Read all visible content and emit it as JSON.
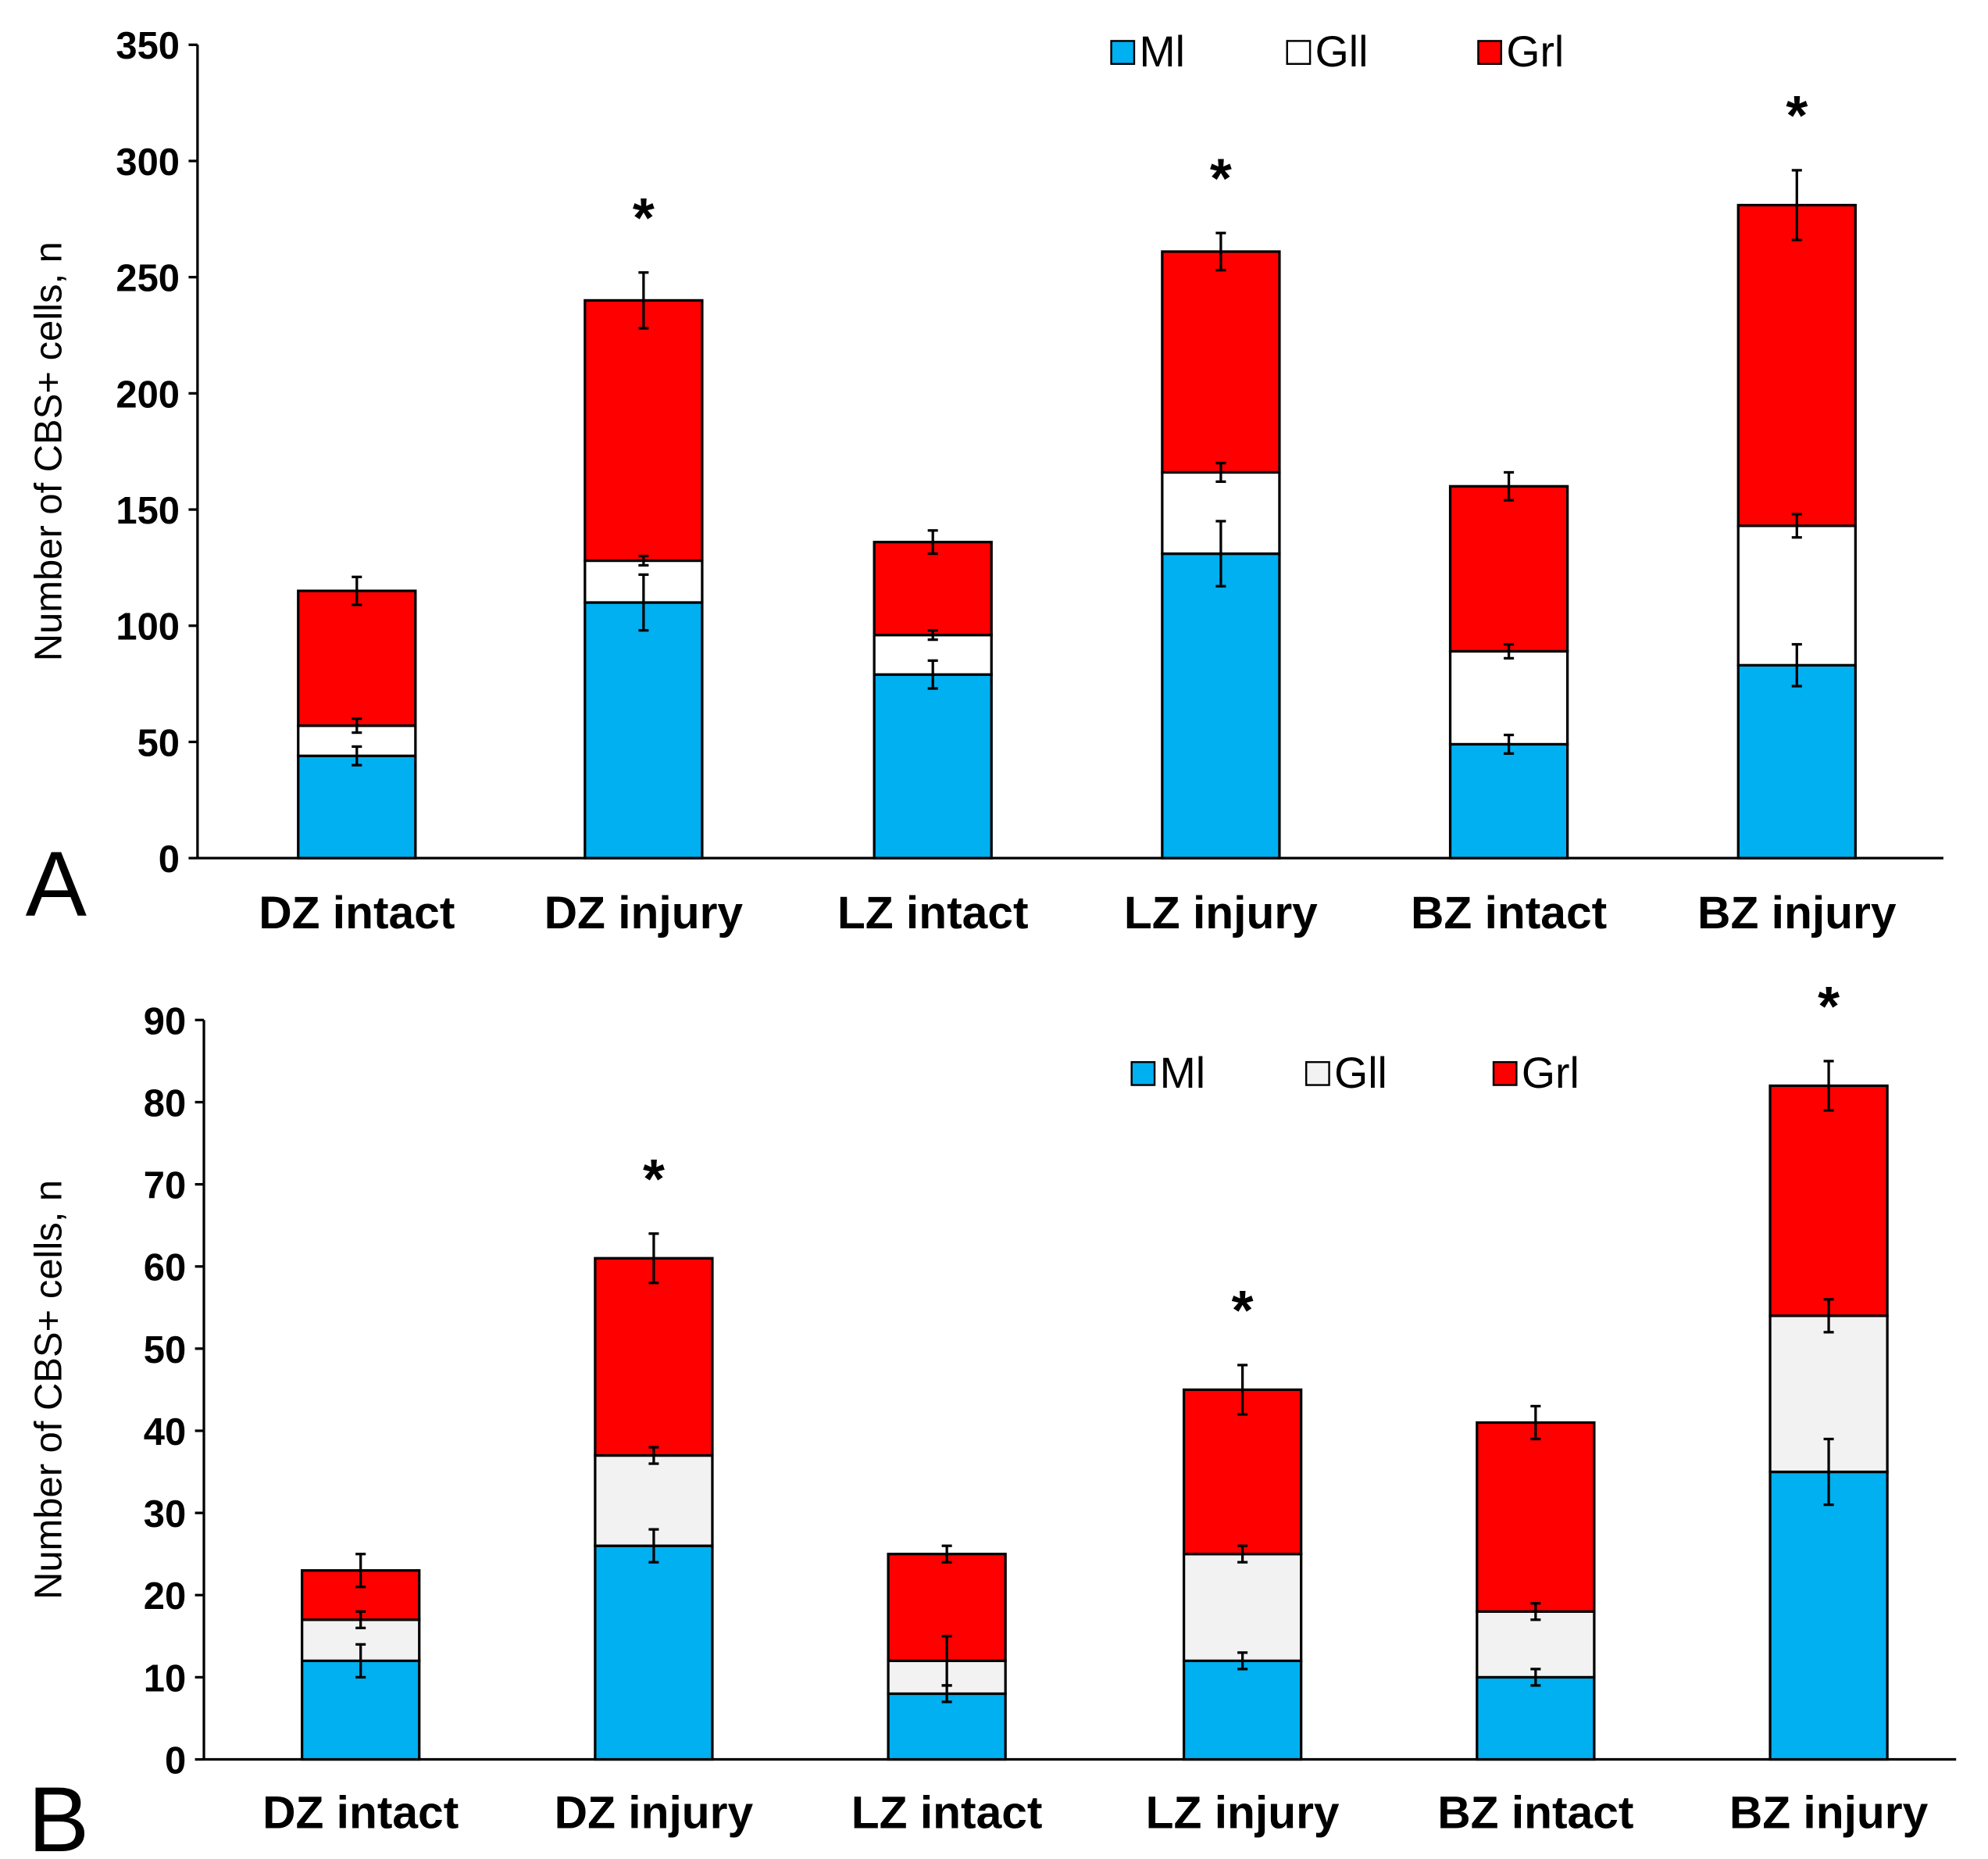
{
  "colors": {
    "Ml": "#00b0f0",
    "Gll_A": "#ffffff",
    "Gll_B": "#f2f2f2",
    "Grl": "#ff0000"
  },
  "chart_data": [
    {
      "type": "bar",
      "stacked": true,
      "panel_label": "A",
      "ylabel": "Number of CBS+ cells, n",
      "ylim": [
        0,
        350
      ],
      "yticks": [
        0,
        50,
        100,
        150,
        200,
        250,
        300,
        350
      ],
      "categories": [
        "DZ intact",
        "DZ injury",
        "LZ intact",
        "LZ injury",
        "BZ intact",
        "BZ injury"
      ],
      "legend": [
        "Ml",
        "Gll",
        "Grl"
      ],
      "legend_position": "top-right",
      "series": [
        {
          "name": "Ml",
          "values": [
            44,
            110,
            79,
            131,
            49,
            83
          ],
          "errors": [
            4,
            12,
            6,
            14,
            4,
            9
          ]
        },
        {
          "name": "Gll",
          "values": [
            13,
            18,
            17,
            35,
            40,
            60
          ],
          "errors": [
            3,
            2,
            2,
            4,
            3,
            5
          ]
        },
        {
          "name": "Grl",
          "values": [
            58,
            112,
            40,
            95,
            71,
            138
          ],
          "errors": [
            6,
            12,
            5,
            8,
            6,
            15
          ]
        }
      ],
      "significance": [
        "",
        "*",
        "",
        "*",
        "",
        "*"
      ]
    },
    {
      "type": "bar",
      "stacked": true,
      "panel_label": "B",
      "ylabel": "Number of CBS+ cells, n",
      "ylim": [
        0,
        90
      ],
      "yticks": [
        0,
        10,
        20,
        30,
        40,
        50,
        60,
        70,
        80,
        90
      ],
      "categories": [
        "DZ intact",
        "DZ injury",
        "LZ intact",
        "LZ injury",
        "BZ intact",
        "BZ injury"
      ],
      "legend": [
        "Ml",
        "Gll",
        "Grl"
      ],
      "legend_position": "top-right",
      "series": [
        {
          "name": "Ml",
          "values": [
            12,
            26,
            8,
            12,
            10,
            35
          ],
          "errors": [
            2,
            2,
            1,
            1,
            1,
            4
          ]
        },
        {
          "name": "Gll",
          "values": [
            5,
            11,
            4,
            13,
            8,
            19
          ],
          "errors": [
            1,
            1,
            3,
            1,
            1,
            2
          ]
        },
        {
          "name": "Grl",
          "values": [
            6,
            24,
            13,
            20,
            23,
            28
          ],
          "errors": [
            2,
            3,
            1,
            3,
            2,
            3
          ]
        }
      ],
      "significance": [
        "",
        "*",
        "",
        "*",
        "",
        "*"
      ]
    }
  ]
}
